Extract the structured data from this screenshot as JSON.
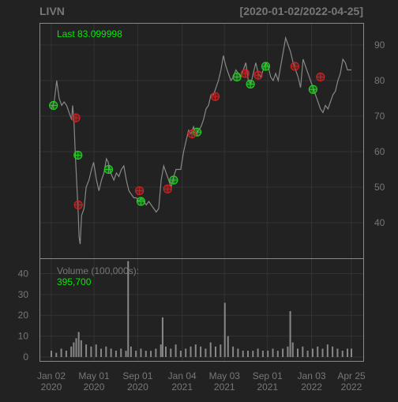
{
  "chart_data": {
    "type": "line",
    "ticker": "LIVN",
    "date_range": "[2020-01-02/2022-04-25]",
    "last_label": "Last 83.099998",
    "volume_label": "Volume (100,000s):",
    "volume_value": "395,700",
    "price_axis": {
      "ticks": [
        40,
        50,
        60,
        70,
        80,
        90
      ],
      "range": [
        30,
        96
      ]
    },
    "volume_axis": {
      "ticks": [
        0,
        10,
        20,
        30,
        40
      ],
      "range": [
        0,
        47
      ]
    },
    "x_ticks": [
      {
        "date": "2020-01-02",
        "line1": "Jan 02",
        "line2": "2020"
      },
      {
        "date": "2020-05-01",
        "line1": "May 01",
        "line2": "2020"
      },
      {
        "date": "2020-09-01",
        "line1": "Sep 01",
        "line2": "2020"
      },
      {
        "date": "2021-01-04",
        "line1": "Jan 04",
        "line2": "2021"
      },
      {
        "date": "2021-05-03",
        "line1": "May 03",
        "line2": "2021"
      },
      {
        "date": "2021-09-01",
        "line1": "Sep 01",
        "line2": "2021"
      },
      {
        "date": "2022-01-03",
        "line1": "Jan 03",
        "line2": "2022"
      },
      {
        "date": "2022-04-25",
        "line1": "Apr 25",
        "line2": "2022"
      }
    ],
    "price_series": [
      [
        "2020-01-02",
        72
      ],
      [
        "2020-01-10",
        74
      ],
      [
        "2020-01-17",
        80
      ],
      [
        "2020-01-24",
        75
      ],
      [
        "2020-01-31",
        73
      ],
      [
        "2020-02-07",
        74
      ],
      [
        "2020-02-14",
        73
      ],
      [
        "2020-02-21",
        71
      ],
      [
        "2020-02-28",
        69
      ],
      [
        "2020-03-02",
        73
      ],
      [
        "2020-03-06",
        68
      ],
      [
        "2020-03-09",
        60
      ],
      [
        "2020-03-13",
        52
      ],
      [
        "2020-03-18",
        42
      ],
      [
        "2020-03-20",
        36
      ],
      [
        "2020-03-23",
        34
      ],
      [
        "2020-03-27",
        42
      ],
      [
        "2020-04-03",
        44
      ],
      [
        "2020-04-09",
        50
      ],
      [
        "2020-04-17",
        52
      ],
      [
        "2020-04-24",
        55
      ],
      [
        "2020-04-30",
        57
      ],
      [
        "2020-05-08",
        52
      ],
      [
        "2020-05-15",
        49
      ],
      [
        "2020-05-22",
        52
      ],
      [
        "2020-05-29",
        54
      ],
      [
        "2020-06-05",
        58
      ],
      [
        "2020-06-10",
        57
      ],
      [
        "2020-06-17",
        54
      ],
      [
        "2020-06-26",
        52
      ],
      [
        "2020-07-03",
        54
      ],
      [
        "2020-07-10",
        53
      ],
      [
        "2020-07-17",
        55
      ],
      [
        "2020-07-24",
        56
      ],
      [
        "2020-07-31",
        52
      ],
      [
        "2020-08-07",
        49
      ],
      [
        "2020-08-14",
        48
      ],
      [
        "2020-08-21",
        47
      ],
      [
        "2020-08-28",
        47
      ],
      [
        "2020-09-04",
        46
      ],
      [
        "2020-09-11",
        47
      ],
      [
        "2020-09-18",
        46
      ],
      [
        "2020-09-25",
        45
      ],
      [
        "2020-10-02",
        46
      ],
      [
        "2020-10-09",
        45
      ],
      [
        "2020-10-16",
        44
      ],
      [
        "2020-10-23",
        43
      ],
      [
        "2020-10-30",
        44
      ],
      [
        "2020-11-06",
        52
      ],
      [
        "2020-11-13",
        56
      ],
      [
        "2020-11-20",
        54
      ],
      [
        "2020-11-27",
        52
      ],
      [
        "2020-12-04",
        50
      ],
      [
        "2020-12-11",
        53
      ],
      [
        "2020-12-18",
        55
      ],
      [
        "2020-12-31",
        55
      ],
      [
        "2021-01-08",
        60
      ],
      [
        "2021-01-15",
        63
      ],
      [
        "2021-01-22",
        66
      ],
      [
        "2021-01-29",
        65
      ],
      [
        "2021-02-05",
        67
      ],
      [
        "2021-02-12",
        65
      ],
      [
        "2021-02-19",
        66
      ],
      [
        "2021-02-26",
        67
      ],
      [
        "2021-03-05",
        69
      ],
      [
        "2021-03-12",
        72
      ],
      [
        "2021-03-19",
        73
      ],
      [
        "2021-03-26",
        76
      ],
      [
        "2021-04-02",
        76
      ],
      [
        "2021-04-09",
        78
      ],
      [
        "2021-04-16",
        80
      ],
      [
        "2021-04-23",
        83
      ],
      [
        "2021-04-30",
        87
      ],
      [
        "2021-05-07",
        84
      ],
      [
        "2021-05-14",
        82
      ],
      [
        "2021-05-21",
        80
      ],
      [
        "2021-05-28",
        81
      ],
      [
        "2021-06-04",
        83
      ],
      [
        "2021-06-11",
        82
      ],
      [
        "2021-06-18",
        81
      ],
      [
        "2021-06-25",
        83
      ],
      [
        "2021-07-02",
        85
      ],
      [
        "2021-07-09",
        80
      ],
      [
        "2021-07-16",
        79
      ],
      [
        "2021-07-23",
        82
      ],
      [
        "2021-07-30",
        85
      ],
      [
        "2021-08-06",
        82
      ],
      [
        "2021-08-13",
        81
      ],
      [
        "2021-08-20",
        83
      ],
      [
        "2021-08-27",
        85
      ],
      [
        "2021-09-03",
        84
      ],
      [
        "2021-09-10",
        81
      ],
      [
        "2021-09-17",
        80
      ],
      [
        "2021-09-24",
        82
      ],
      [
        "2021-10-01",
        80
      ],
      [
        "2021-10-08",
        84
      ],
      [
        "2021-10-15",
        88
      ],
      [
        "2021-10-22",
        92
      ],
      [
        "2021-10-29",
        90
      ],
      [
        "2021-11-05",
        88
      ],
      [
        "2021-11-12",
        85
      ],
      [
        "2021-11-19",
        83
      ],
      [
        "2021-11-26",
        81
      ],
      [
        "2021-12-03",
        78
      ],
      [
        "2021-12-10",
        86
      ],
      [
        "2021-12-17",
        84
      ],
      [
        "2021-12-24",
        82
      ],
      [
        "2021-12-31",
        80
      ],
      [
        "2022-01-07",
        78
      ],
      [
        "2022-01-14",
        76
      ],
      [
        "2022-01-21",
        74
      ],
      [
        "2022-01-28",
        72
      ],
      [
        "2022-02-04",
        71
      ],
      [
        "2022-02-11",
        73
      ],
      [
        "2022-02-18",
        72
      ],
      [
        "2022-02-25",
        74
      ],
      [
        "2022-03-04",
        76
      ],
      [
        "2022-03-11",
        77
      ],
      [
        "2022-03-18",
        80
      ],
      [
        "2022-03-25",
        82
      ],
      [
        "2022-04-01",
        86
      ],
      [
        "2022-04-08",
        85
      ],
      [
        "2022-04-14",
        83
      ],
      [
        "2022-04-25",
        83
      ]
    ],
    "buy_signals": [
      [
        "2020-01-08",
        73
      ],
      [
        "2020-03-17",
        59
      ],
      [
        "2020-06-11",
        55
      ],
      [
        "2020-09-10",
        46
      ],
      [
        "2020-12-11",
        52
      ],
      [
        "2021-02-15",
        65.5
      ],
      [
        "2021-06-07",
        81
      ],
      [
        "2021-07-15",
        79
      ],
      [
        "2021-08-27",
        84
      ],
      [
        "2022-01-07",
        77.5
      ]
    ],
    "sell_signals": [
      [
        "2020-03-11",
        69.5
      ],
      [
        "2020-03-18",
        45
      ],
      [
        "2020-09-06",
        49
      ],
      [
        "2020-11-24",
        49.5
      ],
      [
        "2021-02-01",
        65
      ],
      [
        "2021-04-07",
        75.5
      ],
      [
        "2021-06-30",
        82
      ],
      [
        "2021-08-06",
        81.5
      ],
      [
        "2021-11-17",
        84
      ],
      [
        "2022-01-28",
        81
      ]
    ],
    "volume_series": [
      [
        "2020-01-02",
        3
      ],
      [
        "2020-01-16",
        2
      ],
      [
        "2020-01-30",
        4
      ],
      [
        "2020-02-13",
        3
      ],
      [
        "2020-02-27",
        5
      ],
      [
        "2020-03-05",
        7
      ],
      [
        "2020-03-12",
        9
      ],
      [
        "2020-03-19",
        12
      ],
      [
        "2020-03-26",
        8
      ],
      [
        "2020-04-09",
        6
      ],
      [
        "2020-04-23",
        5
      ],
      [
        "2020-05-07",
        6
      ],
      [
        "2020-05-21",
        4
      ],
      [
        "2020-06-04",
        5
      ],
      [
        "2020-06-18",
        4
      ],
      [
        "2020-07-02",
        3
      ],
      [
        "2020-07-16",
        4
      ],
      [
        "2020-07-30",
        3
      ],
      [
        "2020-08-05",
        46
      ],
      [
        "2020-08-13",
        5
      ],
      [
        "2020-08-27",
        3
      ],
      [
        "2020-09-10",
        4
      ],
      [
        "2020-09-24",
        3
      ],
      [
        "2020-10-08",
        3
      ],
      [
        "2020-10-22",
        4
      ],
      [
        "2020-11-05",
        6
      ],
      [
        "2020-11-10",
        19
      ],
      [
        "2020-11-19",
        5
      ],
      [
        "2020-12-03",
        4
      ],
      [
        "2020-12-17",
        6
      ],
      [
        "2020-12-31",
        3
      ],
      [
        "2021-01-14",
        4
      ],
      [
        "2021-01-28",
        5
      ],
      [
        "2021-02-11",
        6
      ],
      [
        "2021-02-25",
        5
      ],
      [
        "2021-03-11",
        4
      ],
      [
        "2021-03-25",
        7
      ],
      [
        "2021-04-08",
        5
      ],
      [
        "2021-04-22",
        6
      ],
      [
        "2021-05-04",
        26
      ],
      [
        "2021-05-13",
        10
      ],
      [
        "2021-05-27",
        5
      ],
      [
        "2021-06-10",
        4
      ],
      [
        "2021-06-24",
        3
      ],
      [
        "2021-07-08",
        3
      ],
      [
        "2021-07-22",
        3
      ],
      [
        "2021-08-05",
        4
      ],
      [
        "2021-08-19",
        3
      ],
      [
        "2021-09-02",
        3
      ],
      [
        "2021-09-16",
        4
      ],
      [
        "2021-09-30",
        3
      ],
      [
        "2021-10-14",
        4
      ],
      [
        "2021-10-28",
        5
      ],
      [
        "2021-11-04",
        22
      ],
      [
        "2021-11-11",
        7
      ],
      [
        "2021-11-25",
        4
      ],
      [
        "2021-12-09",
        5
      ],
      [
        "2021-12-23",
        3
      ],
      [
        "2022-01-06",
        4
      ],
      [
        "2022-01-20",
        5
      ],
      [
        "2022-02-03",
        4
      ],
      [
        "2022-02-17",
        6
      ],
      [
        "2022-03-03",
        5
      ],
      [
        "2022-03-17",
        4
      ],
      [
        "2022-03-31",
        3
      ],
      [
        "2022-04-14",
        4
      ],
      [
        "2022-04-25",
        4
      ]
    ],
    "colors": {
      "background": "#222222",
      "panel_border": "#888888",
      "grid": "#333333",
      "label": "#777777",
      "price": "#888888",
      "volume": "#888888",
      "accent": "#00ee00",
      "buy": "#22cc22",
      "sell": "#cc2222"
    }
  }
}
